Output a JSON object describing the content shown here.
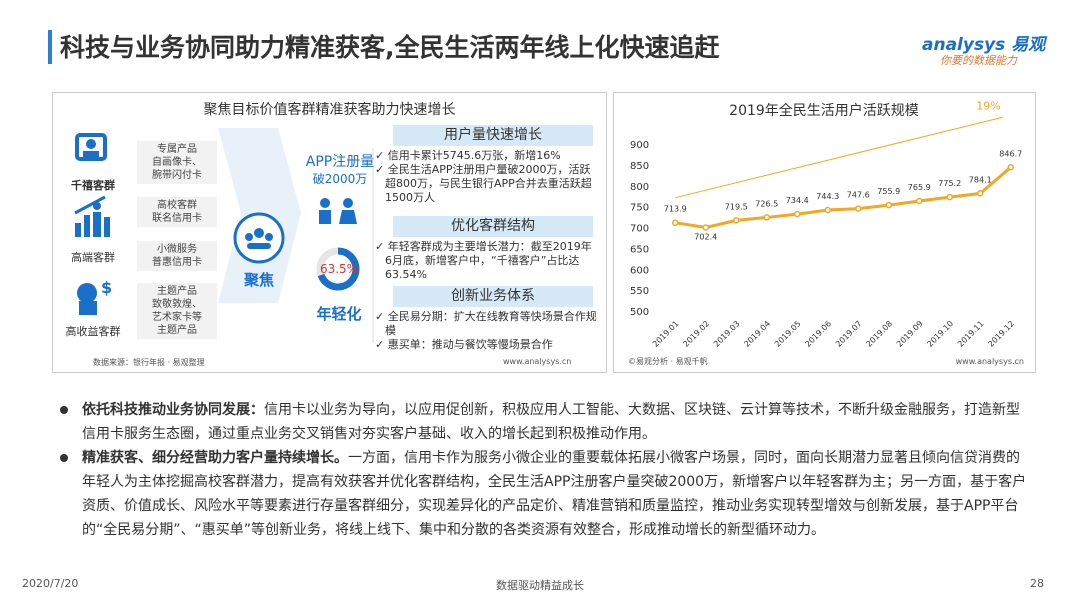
{
  "header": {
    "title": "科技与业务协同助力精准获客,全民生活两年线上化快速追赶",
    "logo": "analysys 易观",
    "tagline": "你要的数据能力"
  },
  "left_panel": {
    "title": "聚焦目标价值客群精准获客助力快速增长",
    "segments": [
      {
        "label": "千禧客群",
        "products": [
          "专属产品",
          "自画像卡、",
          "腕带闪付卡"
        ]
      },
      {
        "label": "高端客群",
        "products": [
          "高校客群",
          "联名信用卡"
        ]
      },
      {
        "label": "高收益客群",
        "products": [
          "小微服务",
          "普惠信用卡"
        ]
      },
      {
        "products": [
          "主题产品",
          "致敬敦煌、",
          "艺术家卡等",
          "主题产品"
        ]
      }
    ],
    "focus": "聚焦",
    "app_label": "APP注册量",
    "app_value": "破2000万",
    "young_share": "63.5%",
    "young_label": "年轻化",
    "sections": [
      {
        "title": "用户量快速增长",
        "bullets": [
          "信用卡累计5745.6万张，新增16%",
          "全民生活APP注册用户量破2000万，活跃超800万，与民生银行APP合并去重活跃超1500万人"
        ]
      },
      {
        "title": "优化客群结构",
        "bullets": [
          "年轻客群成为主要增长潜力：截至2019年6月底，新增客户中，“千禧客户”占比达63.54%"
        ]
      },
      {
        "title": "创新业务体系",
        "bullets": [
          "全民易分期：扩大在线教育等快场景合作规模",
          "惠买单：推动与餐饮等慢场景合作"
        ]
      }
    ],
    "source": "数据来源：银行年报 · 易观整理",
    "site": "www.analysys.cn"
  },
  "chart_data": {
    "type": "line",
    "title": "2019年全民生活用户活跃规模",
    "x": [
      "2019.01",
      "2019.02",
      "2019.03",
      "2019.04",
      "2019.05",
      "2019.06",
      "2019.07",
      "2019.08",
      "2019.09",
      "2019.10",
      "2019.11",
      "2019.12"
    ],
    "series": [
      {
        "color": "#f5a623",
        "values": [
          713.9,
          702.4,
          719.5,
          726.5,
          734.4,
          744.3,
          747.6,
          755.9,
          765.9,
          775.2,
          784.1,
          846.7
        ]
      }
    ],
    "ylim": [
      500,
      900
    ],
    "yticks": [
      500,
      550,
      600,
      650,
      700,
      750,
      800,
      850,
      900
    ],
    "annotation": "19%",
    "source": "©易观分析 · 易观千帆",
    "site": "www.analysys.cn"
  },
  "bullets": [
    {
      "lead": "依托科技推动业务协同发展：",
      "text": "信用卡以业务为导向，以应用促创新，积极应用人工智能、大数据、区块链、云计算等技术，不断升级金融服务，打造新型信用卡服务生态圈，通过重点业务交叉销售对夯实客户基础、收入的增长起到积极推动作用。"
    },
    {
      "lead": "精准获客、细分经营助力客户量持续增长。",
      "text": "一方面，信用卡作为服务小微企业的重要载体拓展小微客户场景，同时，面向长期潜力显著且倾向信贷消费的年轻人为主体挖掘高校客群潜力，提高有效获客并优化客群结构，全民生活APP注册客户量突破2000万，新增客户以年轻客群为主；另一方面，基于客户资质、价值成长、风险水平等要素进行存量客群细分，实现差异化的产品定价、精准营销和质量监控，推动业务实现转型增效与创新发展，基于APP平台的“全民易分期”、“惠买单”等创新业务，将线上线下、集中和分散的各类资源有效整合，形成推动增长的新型循环动力。"
    }
  ],
  "footer": {
    "date": "2020/7/20",
    "center": "数据驱动精益成长",
    "page": "28"
  }
}
